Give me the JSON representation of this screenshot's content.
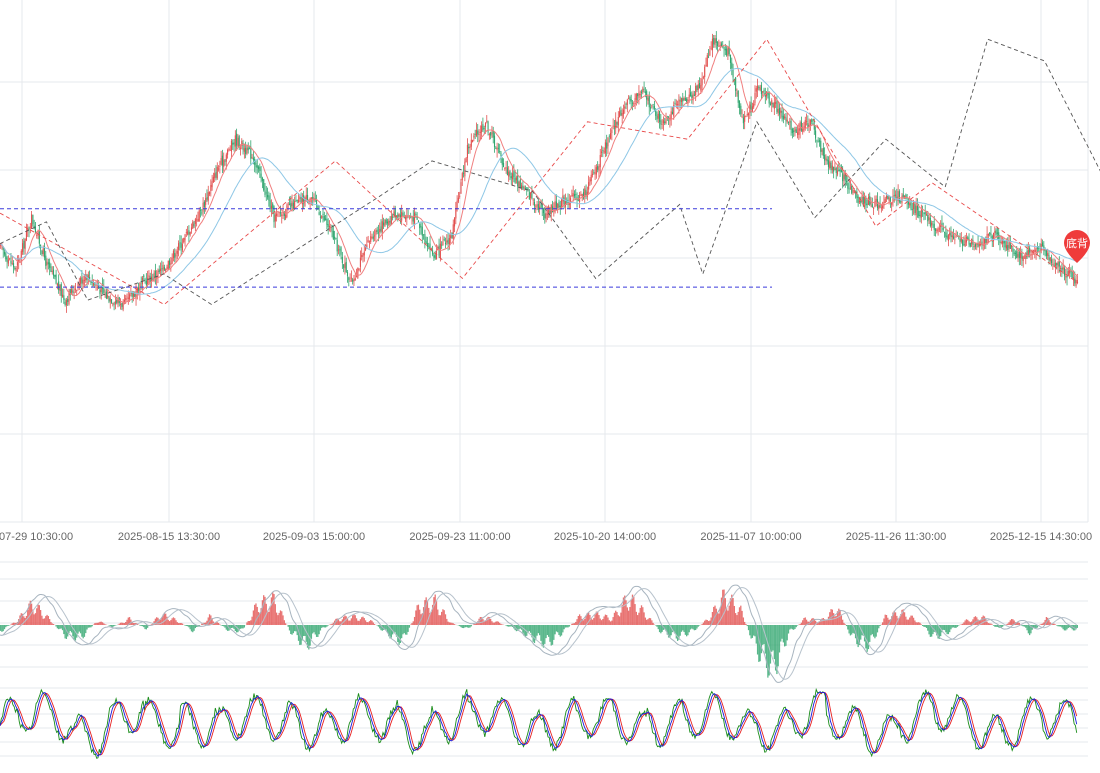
{
  "colors": {
    "up": "#e2504f",
    "down": "#2fa56e",
    "ma_fast": "#f07f7f",
    "ma_slow": "#8ec7e6",
    "zigzag_dark": "#555555",
    "zigzag_red": "#e84a4a",
    "level_line": "#3b3bdc",
    "grid": "#e6e8ec",
    "axis_text": "#666666",
    "macd_line1": "#a7b4bf",
    "macd_line2": "#b7c2cc",
    "kdj_k": "#1a1adc",
    "kdj_d": "#e82020",
    "kdj_j": "#1a8c1a",
    "badge": "#ef3b3b"
  },
  "badge": {
    "text": "底背"
  },
  "chart_data": [
    {
      "type": "candlestick",
      "title": "",
      "x_tick_labels": [
        "2025-07-29 10:30:00",
        "2025-08-15 13:30:00",
        "2025-09-03 15:00:00",
        "2025-09-23 11:00:00",
        "2025-10-20 14:00:00",
        "2025-11-07 10:00:00",
        "2025-11-26 11:30:00",
        "2025-12-15 14:30:00"
      ],
      "price_range": [
        0,
        6
      ],
      "grid": true,
      "trend_points": [
        [
          0,
          3.15
        ],
        [
          12,
          2.9
        ],
        [
          24,
          3.5
        ],
        [
          36,
          2.95
        ],
        [
          50,
          2.55
        ],
        [
          66,
          2.85
        ],
        [
          82,
          2.6
        ],
        [
          96,
          2.5
        ],
        [
          110,
          2.75
        ],
        [
          126,
          2.9
        ],
        [
          142,
          3.25
        ],
        [
          156,
          3.6
        ],
        [
          168,
          4.05
        ],
        [
          182,
          4.4
        ],
        [
          196,
          4.2
        ],
        [
          212,
          3.5
        ],
        [
          228,
          3.65
        ],
        [
          240,
          3.75
        ],
        [
          256,
          3.35
        ],
        [
          272,
          2.75
        ],
        [
          288,
          3.3
        ],
        [
          306,
          3.55
        ],
        [
          322,
          3.5
        ],
        [
          336,
          3.05
        ],
        [
          350,
          3.3
        ],
        [
          362,
          4.3
        ],
        [
          376,
          4.6
        ],
        [
          392,
          4.05
        ],
        [
          408,
          3.8
        ],
        [
          422,
          3.55
        ],
        [
          436,
          3.7
        ],
        [
          452,
          3.75
        ],
        [
          466,
          4.2
        ],
        [
          482,
          4.75
        ],
        [
          498,
          4.95
        ],
        [
          512,
          4.6
        ],
        [
          526,
          4.8
        ],
        [
          542,
          5.0
        ],
        [
          552,
          5.55
        ],
        [
          564,
          5.4
        ],
        [
          576,
          4.6
        ],
        [
          588,
          5.0
        ],
        [
          600,
          4.8
        ],
        [
          614,
          4.5
        ],
        [
          628,
          4.6
        ],
        [
          640,
          4.15
        ],
        [
          654,
          3.95
        ],
        [
          666,
          3.7
        ],
        [
          682,
          3.65
        ],
        [
          696,
          3.75
        ],
        [
          710,
          3.6
        ],
        [
          724,
          3.4
        ],
        [
          740,
          3.25
        ],
        [
          756,
          3.2
        ],
        [
          772,
          3.3
        ],
        [
          790,
          3.05
        ],
        [
          806,
          3.15
        ],
        [
          820,
          2.95
        ],
        [
          836,
          2.75
        ]
      ],
      "moving_average_lines": [
        "fast",
        "slow"
      ],
      "zigzag_dark": [
        [
          0,
          3.2
        ],
        [
          36,
          3.45
        ],
        [
          68,
          2.55
        ],
        [
          127,
          2.85
        ],
        [
          164,
          2.5
        ],
        [
          295,
          3.75
        ],
        [
          335,
          4.15
        ],
        [
          413,
          3.8
        ],
        [
          462,
          2.8
        ],
        [
          527,
          3.65
        ],
        [
          545,
          2.85
        ],
        [
          587,
          4.6
        ],
        [
          632,
          3.5
        ],
        [
          687,
          4.4
        ],
        [
          733,
          3.85
        ],
        [
          766,
          5.55
        ],
        [
          810,
          5.3
        ],
        [
          875,
          3.4
        ],
        [
          931,
          3.9
        ],
        [
          1022,
          2.95
        ],
        [
          1077,
          2.75
        ]
      ],
      "zigzag_red": [
        [
          0,
          3.55
        ],
        [
          164,
          2.5
        ],
        [
          335,
          4.15
        ],
        [
          462,
          2.8
        ],
        [
          587,
          4.6
        ],
        [
          687,
          4.4
        ],
        [
          766,
          5.55
        ],
        [
          875,
          3.4
        ],
        [
          931,
          3.9
        ],
        [
          1077,
          2.75
        ]
      ],
      "horizontal_levels": [
        3.6,
        2.7
      ]
    },
    {
      "type": "bar",
      "indicator": "MACD",
      "series": [
        {
          "values": [
            -0.3,
            0.2,
            1.0,
            0.3,
            -0.5,
            -0.6,
            0.2,
            -0.1,
            0.3,
            -0.2,
            0.5,
            0.2,
            -0.3,
            0.4,
            -0.2,
            -0.3,
            1.0,
            1.2,
            -0.3,
            -1.0,
            -0.2,
            0.3,
            0.4,
            0.2,
            -0.4,
            -0.8,
            0.9,
            1.1,
            0.1,
            -0.2,
            0.4,
            0.1,
            -0.2,
            -0.6,
            -0.9,
            -0.3,
            0.4,
            0.5,
            0.3,
            1.3,
            0.6,
            -0.3,
            -0.6,
            -0.3,
            0.3,
            1.4,
            0.7,
            -1.2,
            -2.2,
            -0.4,
            0.3,
            0.2,
            0.8,
            -0.7,
            -1.0,
            0.4,
            0.6,
            0.2,
            -0.6,
            -0.3,
            0.2,
            0.4,
            -0.2,
            0.3,
            -0.4,
            0.3,
            -0.2
          ]
        }
      ]
    },
    {
      "type": "line",
      "indicator": "KDJ",
      "series": [
        {
          "values": [
            50,
            60,
            45,
            55,
            40,
            65,
            50,
            45,
            60,
            55,
            40,
            50,
            62,
            48,
            52,
            58,
            44,
            50,
            66,
            52,
            46,
            56,
            60,
            42,
            48,
            62,
            54,
            50,
            58,
            44
          ]
        }
      ]
    }
  ]
}
